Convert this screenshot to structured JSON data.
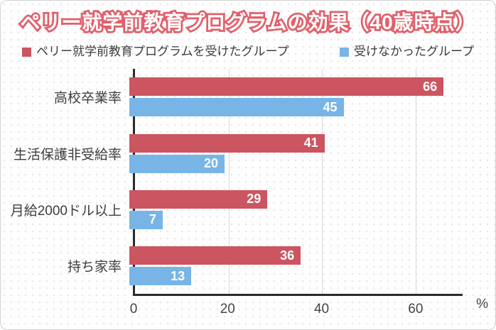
{
  "header": {
    "title": "ペリー就学前教育プログラムの効果（40歳時点）"
  },
  "legend": {
    "items": [
      {
        "label": "ペリー就学前教育プログラムを受けたグループ",
        "color": "#cb5560"
      },
      {
        "label": "受けなかったグループ",
        "color": "#78b5e6"
      }
    ]
  },
  "chart_data": {
    "type": "bar",
    "orientation": "horizontal",
    "title": "ペリー就学前教育プログラムの効果（40歳時点）",
    "categories": [
      "高校卒業率",
      "生活保護非受給率",
      "月給2000ドル以上",
      "持ち家率"
    ],
    "series": [
      {
        "name": "ペリー就学前教育プログラムを受けたグループ",
        "color": "#cb5560",
        "values": [
          66,
          41,
          29,
          36
        ]
      },
      {
        "name": "受けなかったグループ",
        "color": "#78b5e6",
        "values": [
          45,
          20,
          7,
          13
        ]
      }
    ],
    "value_labels": true,
    "xlabel": "%",
    "x_ticks": [
      0,
      20,
      40,
      60
    ],
    "xlim": [
      0,
      70
    ],
    "grid": true,
    "legend_position": "top"
  },
  "colors": {
    "treated_bar": "#cb5560",
    "control_bar": "#78b5e6",
    "title_stroke": "#e0606b",
    "axis": "#2b2b2b",
    "gridline": "#d9d9d9",
    "text": "#3d3d3d"
  }
}
